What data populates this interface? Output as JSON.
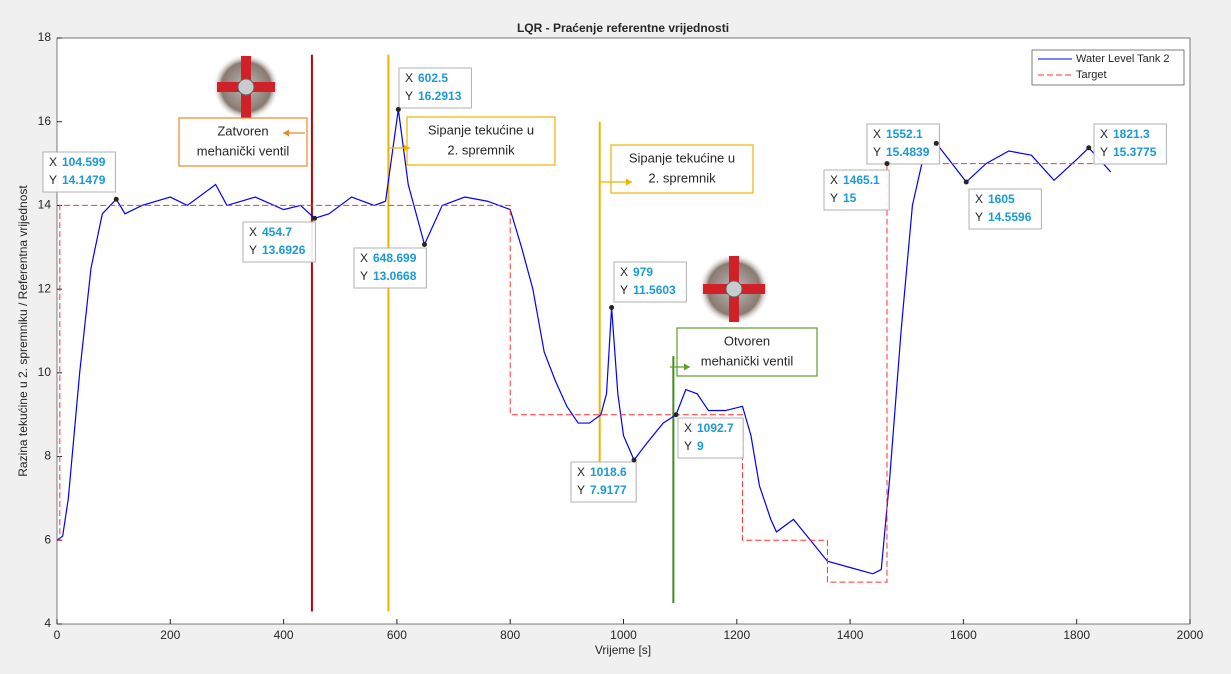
{
  "chart_data": {
    "type": "line",
    "title": "LQR - Praćenje referentne vrijednosti",
    "xlabel": "Vrijeme [s]",
    "ylabel": "Razina tekućine u 2. spremniku / Referentna vrijednost",
    "xlim": [
      0,
      2000
    ],
    "xticks": [
      0,
      200,
      400,
      600,
      800,
      1000,
      1200,
      1400,
      1600,
      1800,
      2000
    ],
    "ylim": [
      4,
      18
    ],
    "yticks": [
      4,
      6,
      8,
      10,
      12,
      14,
      16,
      18
    ],
    "grid": false,
    "legend": "upper right",
    "series": [
      {
        "name": "Water Level Tank 2",
        "color": "#0000ff",
        "dash": false,
        "x": [
          0,
          10,
          20,
          40,
          60,
          80,
          104.599,
          120,
          150,
          200,
          230,
          280,
          300,
          350,
          400,
          430,
          454.7,
          480,
          520,
          560,
          580,
          602.5,
          620,
          648.699,
          680,
          720,
          760,
          800,
          820,
          840,
          860,
          880,
          900,
          920,
          940,
          960,
          970,
          979,
          990,
          1000,
          1018.6,
          1040,
          1070,
          1092.7,
          1110,
          1130,
          1150,
          1180,
          1210,
          1225,
          1240,
          1260,
          1270,
          1300,
          1330,
          1360,
          1400,
          1440,
          1455,
          1470,
          1490,
          1510,
          1530,
          1552.1,
          1580,
          1605,
          1640,
          1680,
          1720,
          1760,
          1800,
          1821.3,
          1840,
          1860
        ],
        "values": [
          6.0,
          6.1,
          7,
          10,
          12.5,
          13.8,
          14.1479,
          13.8,
          14.0,
          14.2,
          14.0,
          14.5,
          14.0,
          14.2,
          13.9,
          14.0,
          13.6926,
          13.8,
          14.2,
          14.0,
          14.1,
          16.2913,
          14.5,
          13.0668,
          14.0,
          14.2,
          14.1,
          13.9,
          13.0,
          12.0,
          10.5,
          9.8,
          9.2,
          8.8,
          8.8,
          9.0,
          9.5,
          11.5603,
          9.5,
          8.5,
          7.9177,
          8.3,
          8.8,
          9.0,
          9.6,
          9.5,
          9.1,
          9.1,
          9.2,
          8.5,
          7.3,
          6.5,
          6.2,
          6.5,
          6.0,
          5.5,
          5.35,
          5.2,
          5.3,
          7.5,
          11,
          14,
          15.2,
          15.4839,
          15.0,
          14.5596,
          15.0,
          15.3,
          15.2,
          14.6,
          15.1,
          15.3775,
          15.1,
          14.8
        ]
      },
      {
        "name": "Target",
        "color": "#ff3333",
        "dash": true,
        "x": [
          0,
          5,
          5,
          800,
          800,
          1210,
          1210,
          1360,
          1360,
          1465.1,
          1465.1,
          1860
        ],
        "values": [
          6,
          6,
          14,
          14,
          9,
          9,
          6,
          6,
          5,
          5,
          15,
          15
        ]
      }
    ],
    "datatip_prefix_x": "X",
    "datatip_prefix_y": "Y",
    "datatips": [
      {
        "x": 104.599,
        "y": 14.1479
      },
      {
        "x": 454.7,
        "y": 13.6926
      },
      {
        "x": 602.5,
        "y": 16.2913
      },
      {
        "x": 648.699,
        "y": 13.0668
      },
      {
        "x": 979,
        "y": 11.5603
      },
      {
        "x": 1018.6,
        "y": 7.9177
      },
      {
        "x": 1092.7,
        "y": 9
      },
      {
        "x": 1552.1,
        "y": 15.4839
      },
      {
        "x": 1465.1,
        "y": 15
      },
      {
        "x": 1605,
        "y": 14.5596
      },
      {
        "x": 1821.3,
        "y": 15.3775
      }
    ],
    "vlines": [
      {
        "x": 450,
        "ymin": 4.3,
        "ymax": 17.6,
        "color": "#c00000"
      },
      {
        "x": 585,
        "ymin": 4.3,
        "ymax": 17.6,
        "color": "#f0b400"
      },
      {
        "x": 958,
        "ymin": 7.8,
        "ymax": 16,
        "color": "#f0b400"
      },
      {
        "x": 1088,
        "ymin": 4.5,
        "ymax": 10.4,
        "color": "#3f8f1f"
      }
    ],
    "annotations": [
      {
        "lines": [
          "Zatvoren",
          "mehanički ventil"
        ],
        "color": "#e8892a"
      },
      {
        "lines": [
          "Sipanje tekućine u",
          "2. spremnik"
        ],
        "color": "#f0b400"
      },
      {
        "lines": [
          "Sipanje tekućine u",
          "2. spremnik"
        ],
        "color": "#f0b400"
      },
      {
        "lines": [
          "Otvoren",
          "mehanički ventil"
        ],
        "color": "#5aa02c"
      }
    ]
  }
}
